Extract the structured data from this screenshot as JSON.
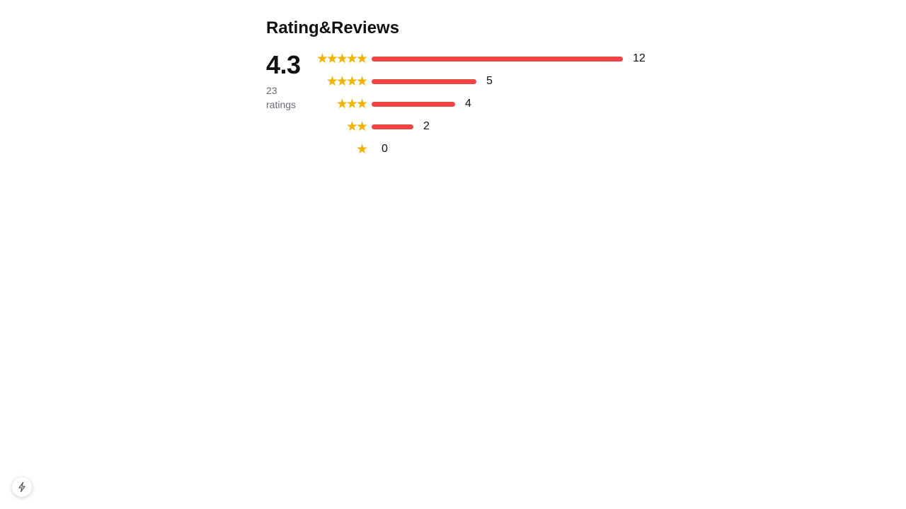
{
  "header": {
    "title": "Rating&Reviews"
  },
  "summary": {
    "average": "4.3",
    "count_number": "23",
    "count_label": "ratings"
  },
  "distribution": [
    {
      "stars": 5,
      "star_glyphs": "★★★★★",
      "count": 12,
      "count_label": "12"
    },
    {
      "stars": 4,
      "star_glyphs": "★★★★",
      "count": 5,
      "count_label": "5"
    },
    {
      "stars": 3,
      "star_glyphs": "★★★",
      "count": 4,
      "count_label": "4"
    },
    {
      "stars": 2,
      "star_glyphs": "★★",
      "count": 2,
      "count_label": "2"
    },
    {
      "stars": 1,
      "star_glyphs": "★",
      "count": 0,
      "count_label": "0"
    }
  ],
  "colors": {
    "bar": "#ef4444",
    "star": "#f0b400",
    "muted_text": "#666b73"
  },
  "icons": {
    "floating_button": "lightning-bolt-icon",
    "star": "star-icon"
  }
}
